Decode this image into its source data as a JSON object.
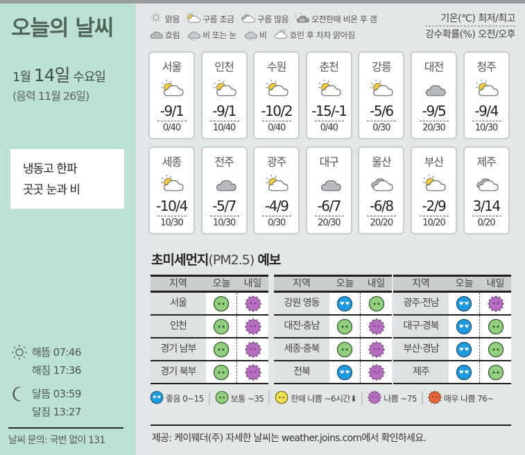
{
  "header": {
    "title": "오늘의 날씨"
  },
  "date": {
    "month": "1월",
    "day": "14일",
    "weekday": "수요일",
    "lunar": "(음력 11월 26일)"
  },
  "headline": {
    "line1": "냉동고 한파",
    "line2": "곳곳 눈과 비"
  },
  "astro": {
    "sunrise": "해뜸 07:46",
    "sunset": "해짐 17:36",
    "moonrise": "달뜸 03:59",
    "moonset": "달짐 13:27"
  },
  "inquiry": "날씨 문의: 국번 없이 131",
  "legend": {
    "row1": [
      {
        "icon": "sun-icon",
        "label": "맑음"
      },
      {
        "icon": "partly-cloudy-icon",
        "label": "구름 조금"
      },
      {
        "icon": "mostly-cloudy-icon",
        "label": "구름 많음"
      },
      {
        "icon": "am-rain-then-clear-icon",
        "label": "오전한때 비온 후 갬"
      }
    ],
    "row2": [
      {
        "icon": "overcast-icon",
        "label": "흐림"
      },
      {
        "icon": "rain-or-snow-icon",
        "label": "비 또는 눈"
      },
      {
        "icon": "rain-icon",
        "label": "비"
      },
      {
        "icon": "cloudy-then-clear-icon",
        "label": "흐린 후 차차 맑아짐"
      }
    ],
    "unit_temp": "기온(℃) 최저/최고",
    "unit_rain": "강수확률(%) 오전/오후"
  },
  "cities": [
    {
      "name": "서울",
      "icon": "partly-cloudy",
      "temp": "-9/1",
      "rain": "0/40"
    },
    {
      "name": "인천",
      "icon": "partly-cloudy",
      "temp": "-9/1",
      "rain": "10/40"
    },
    {
      "name": "수원",
      "icon": "partly-cloudy",
      "temp": "-10/2",
      "rain": "0/40"
    },
    {
      "name": "춘천",
      "icon": "partly-cloudy",
      "temp": "-15/-1",
      "rain": "0/40"
    },
    {
      "name": "강릉",
      "icon": "partly-cloudy",
      "temp": "-5/6",
      "rain": "0/30"
    },
    {
      "name": "대전",
      "icon": "overcast",
      "temp": "-9/5",
      "rain": "20/30"
    },
    {
      "name": "청주",
      "icon": "partly-cloudy",
      "temp": "-9/4",
      "rain": "10/30"
    },
    {
      "name": "세종",
      "icon": "partly-cloudy",
      "temp": "-10/4",
      "rain": "10/30"
    },
    {
      "name": "전주",
      "icon": "overcast",
      "temp": "-5/7",
      "rain": "10/30"
    },
    {
      "name": "광주",
      "icon": "partly-cloudy",
      "temp": "-4/9",
      "rain": "0/30"
    },
    {
      "name": "대구",
      "icon": "overcast",
      "temp": "-6/7",
      "rain": "20/30"
    },
    {
      "name": "울산",
      "icon": "mostly-cloudy",
      "temp": "-6/8",
      "rain": "20/20"
    },
    {
      "name": "부산",
      "icon": "partly-cloudy",
      "temp": "-2/9",
      "rain": "10/20"
    },
    {
      "name": "제주",
      "icon": "mostly-cloudy",
      "temp": "3/14",
      "rain": "0/20"
    }
  ],
  "pm": {
    "title_bold1": "초미세먼지",
    "title_mid": "(PM2.5) ",
    "title_bold2": "예보",
    "headers": {
      "region": "지역",
      "today": "오늘",
      "tomorrow": "내일"
    },
    "tables": [
      [
        {
          "region": "서울",
          "today": "normal",
          "tomorrow": "bad"
        },
        {
          "region": "인천",
          "today": "normal",
          "tomorrow": "bad"
        },
        {
          "region": "경기 남부",
          "today": "normal",
          "tomorrow": "bad"
        },
        {
          "region": "경기 북부",
          "today": "normal",
          "tomorrow": "bad"
        }
      ],
      [
        {
          "region": "강원 영동",
          "today": "good",
          "tomorrow": "normal"
        },
        {
          "region": "대전·충남",
          "today": "normal",
          "tomorrow": "bad"
        },
        {
          "region": "세종·충북",
          "today": "normal",
          "tomorrow": "bad"
        },
        {
          "region": "전북",
          "today": "good",
          "tomorrow": "bad"
        }
      ],
      [
        {
          "region": "광주·전남",
          "today": "good",
          "tomorrow": "bad"
        },
        {
          "region": "대구·경북",
          "today": "good",
          "tomorrow": "normal"
        },
        {
          "region": "부산·경남",
          "today": "good",
          "tomorrow": "normal"
        },
        {
          "region": "제주",
          "today": "good",
          "tomorrow": "normal"
        }
      ]
    ],
    "legend": [
      {
        "level": "good",
        "label": "좋음 0~15"
      },
      {
        "level": "normal",
        "label": "보통 ~35"
      },
      {
        "level": "temp-bad",
        "label": "한때 나쁨 ~6시간⬇"
      },
      {
        "level": "bad",
        "label": "나쁨 ~75"
      },
      {
        "level": "very-bad",
        "label": "매우 나쁨 76~"
      }
    ],
    "colors": {
      "good": "#1e9be0",
      "normal": "#94cf7f",
      "temp-bad": "#f1e04f",
      "bad": "#b66ec0",
      "very-bad": "#e8673c"
    }
  },
  "credit": "제공: 케이웨더(주) 자세한 날씨는 weather.joins.com에서 확인하세요."
}
